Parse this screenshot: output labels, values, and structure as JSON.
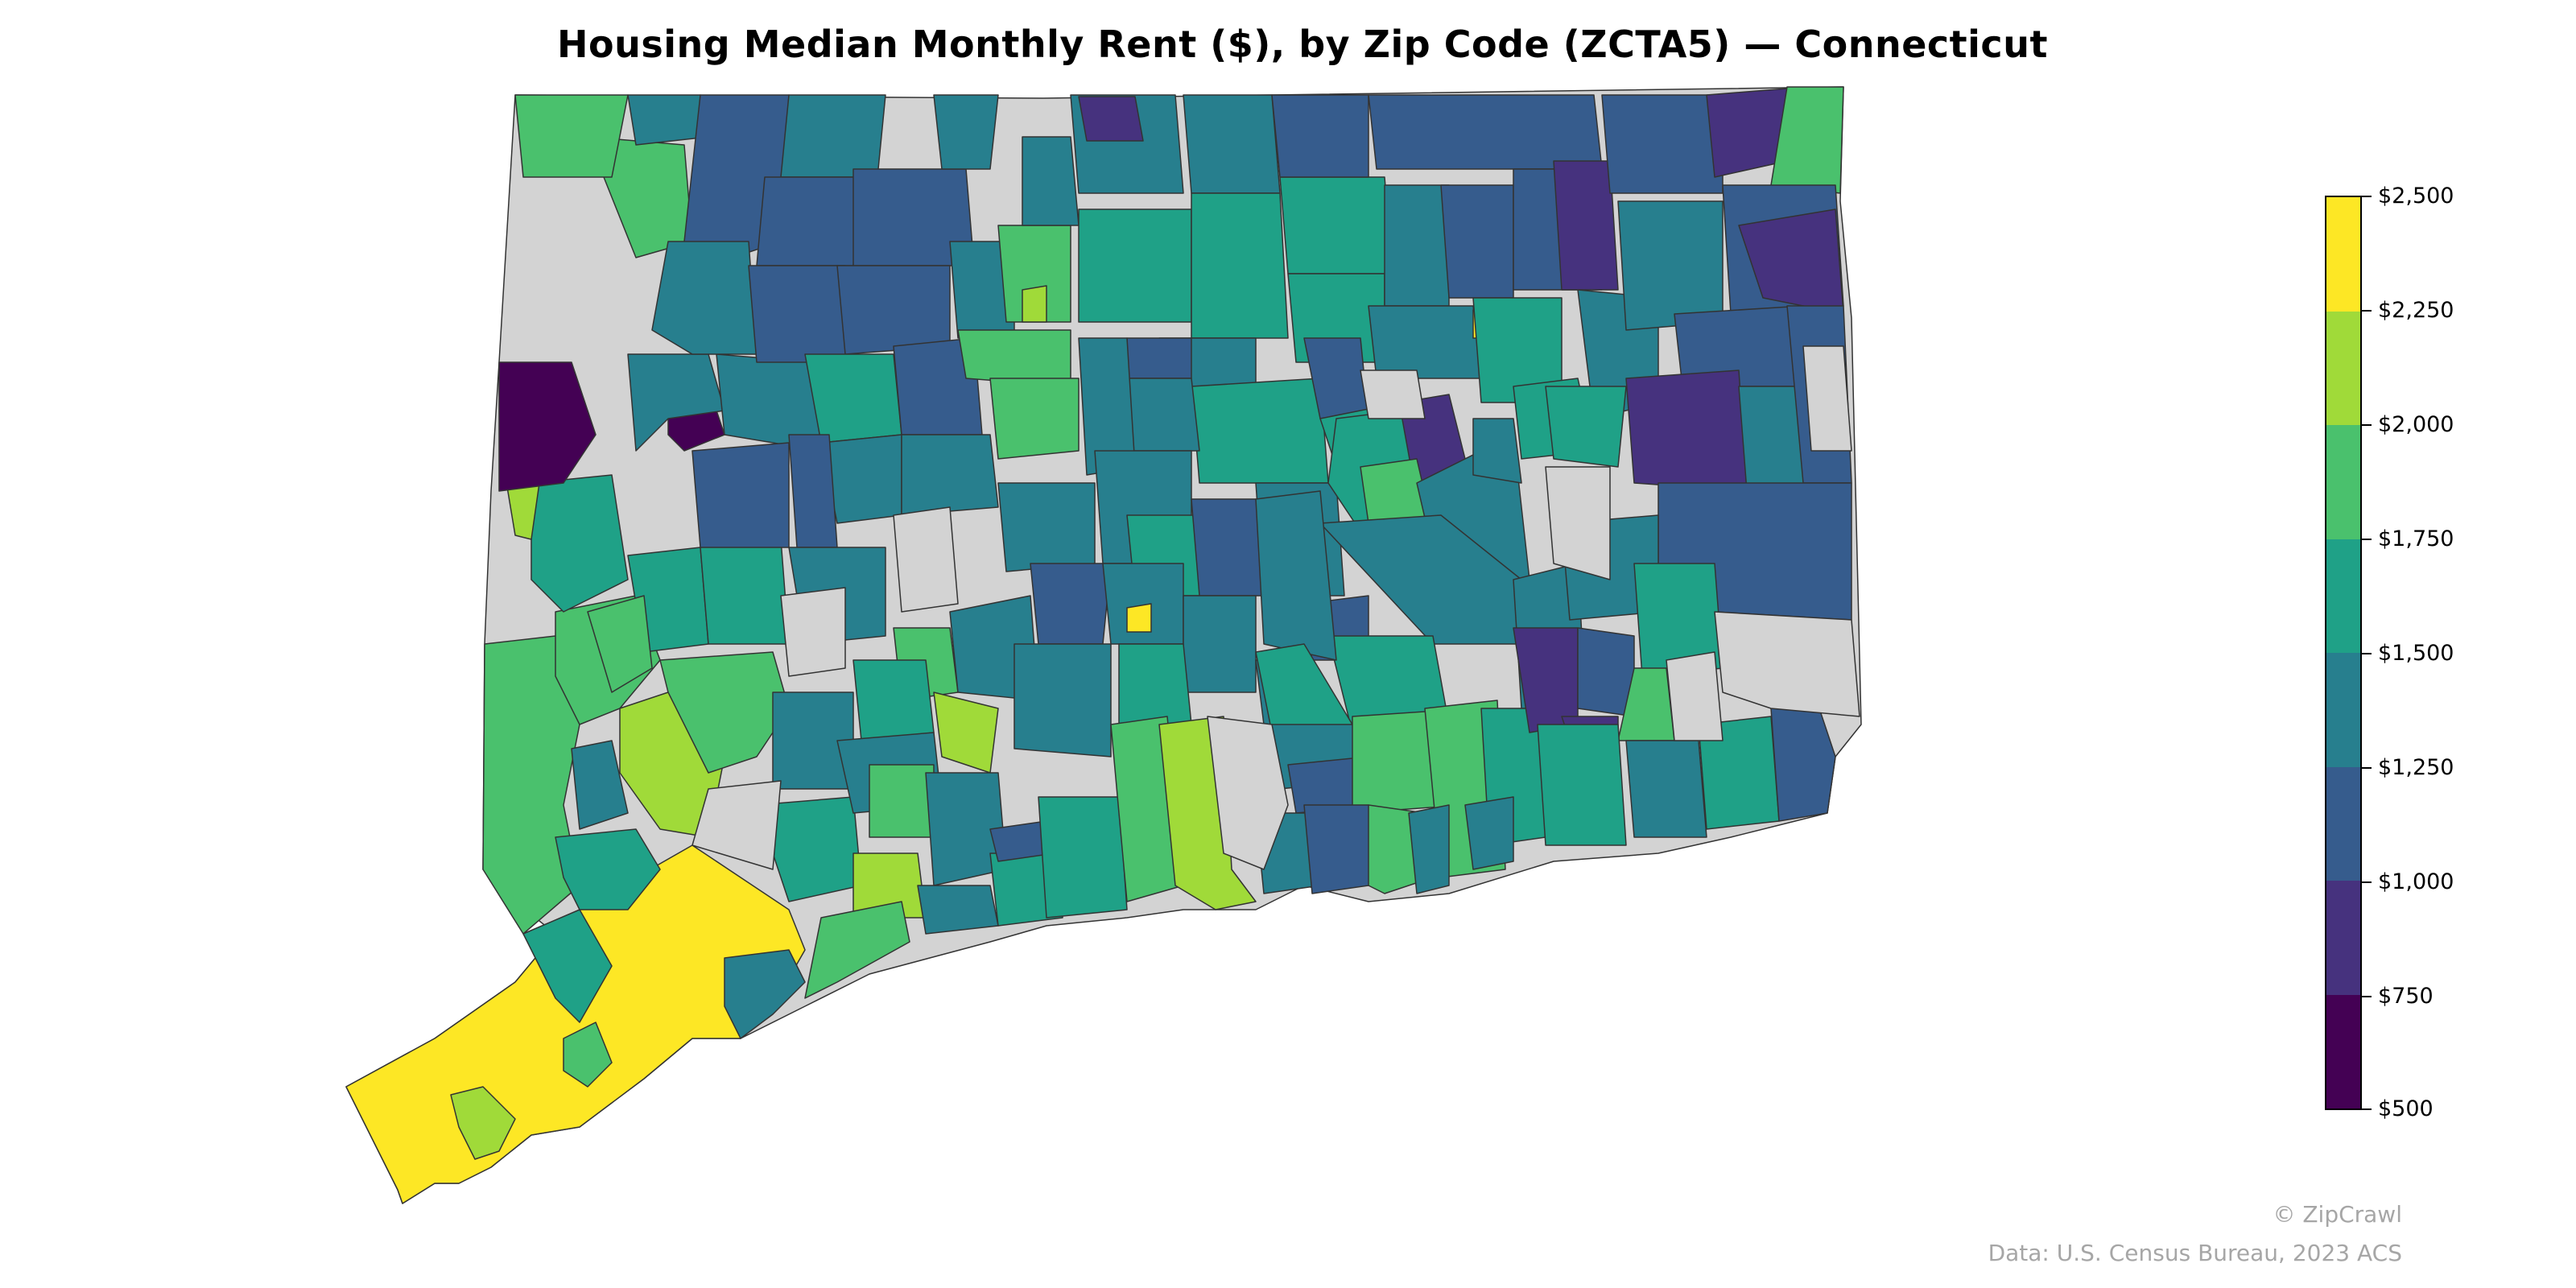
{
  "title": "Housing Median Monthly Rent ($), by Zip Code (ZCTA5) — Connecticut",
  "legend": {
    "ticks": [
      "$2,500",
      "$2,250",
      "$2,000",
      "$1,750",
      "$1,500",
      "$1,250",
      "$1,000",
      "$750",
      "$500"
    ],
    "bins": [
      {
        "range": "$2,250–$2,500",
        "color": "#fde725"
      },
      {
        "range": "$2,000–$2,250",
        "color": "#a0da39"
      },
      {
        "range": "$1,750–$2,000",
        "color": "#4ac16d"
      },
      {
        "range": "$1,500–$1,750",
        "color": "#1fa187"
      },
      {
        "range": "$1,250–$1,500",
        "color": "#277f8e"
      },
      {
        "range": "$1,000–$1,250",
        "color": "#365c8d"
      },
      {
        "range": "$750–$1,000",
        "color": "#46327e"
      },
      {
        "range": "$500–$750",
        "color": "#440154"
      }
    ],
    "no_data_color": "#d3d3d3"
  },
  "credits": {
    "brand": "© ZipCrawl",
    "source": "Data: U.S. Census Bureau, 2023 ACS"
  }
}
